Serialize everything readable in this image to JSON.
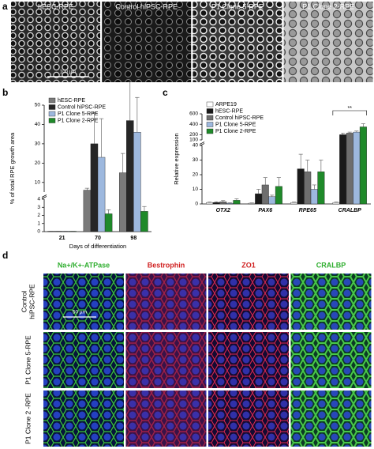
{
  "panel_a": {
    "label": "a",
    "scale_bar": "100 µm",
    "images": [
      {
        "title": "hESC-RPE"
      },
      {
        "title": "Control hiPSC-RPE"
      },
      {
        "title": "P1 Clone 5-RPE"
      },
      {
        "title": "P1 Clone 2-RPE"
      }
    ]
  },
  "chart_data": [
    {
      "type": "bar",
      "panel_label": "b",
      "ylabel": "% of total RPE growth area",
      "xlabel": "Days of differentiation",
      "categories": [
        "21",
        "70",
        "98"
      ],
      "legend": "upper left",
      "y_segments": [
        {
          "ylim": [
            0,
            4
          ],
          "yticks": [
            0,
            1,
            2,
            3,
            4
          ]
        },
        {
          "ylim": [
            5,
            50
          ],
          "yticks": [
            10,
            20,
            30,
            40,
            50
          ]
        }
      ],
      "series": [
        {
          "name": "hESC-RPE",
          "color": "#7a7a7a",
          "values": [
            0.05,
            6,
            15
          ],
          "errors": [
            0,
            1,
            10
          ]
        },
        {
          "name": "Control hiPSC-RPE",
          "color": "#262626",
          "values": [
            0.05,
            30,
            42
          ],
          "errors": [
            0,
            16,
            20
          ]
        },
        {
          "name": "P1 Clone 5-RPE",
          "color": "#9db8de",
          "values": [
            0.05,
            23,
            36
          ],
          "errors": [
            0,
            20,
            18
          ]
        },
        {
          "name": "P1 Clone 2-RPE",
          "color": "#1f8a2a",
          "values": [
            0.05,
            2.2,
            2.5
          ],
          "errors": [
            0,
            0.5,
            0.6
          ]
        }
      ]
    },
    {
      "type": "bar",
      "panel_label": "c",
      "ylabel": "Relative expression",
      "significance": "**",
      "categories": [
        "OTX2",
        "PAX6",
        "RPE65",
        "CRALBP"
      ],
      "legend": "upper left",
      "y_segments": [
        {
          "ylim": [
            0,
            40
          ],
          "yticks": [
            0,
            10,
            20,
            30,
            40
          ]
        },
        {
          "ylim": [
            100,
            600
          ],
          "yticks": [
            100,
            200,
            400,
            600
          ]
        }
      ],
      "series": [
        {
          "name": "ARPE19",
          "color": "#ffffff",
          "values": [
            1,
            0.5,
            1,
            1
          ],
          "errors": [
            0.3,
            0.2,
            0.3,
            0.3
          ]
        },
        {
          "name": "hESC-RPE",
          "color": "#1a1a1a",
          "values": [
            1,
            7,
            24,
            200
          ],
          "errors": [
            0.5,
            3,
            10,
            30
          ]
        },
        {
          "name": "Control hiPSC-RPE",
          "color": "#6e6e6e",
          "values": [
            1.5,
            13,
            22,
            230
          ],
          "errors": [
            0.8,
            5,
            8,
            20
          ]
        },
        {
          "name": "P1 Clone 5-RPE",
          "color": "#9db8de",
          "values": [
            0.5,
            5,
            10,
            250
          ],
          "errors": [
            0.3,
            1,
            3,
            20
          ]
        },
        {
          "name": "P1 Clone 2-RPE",
          "color": "#1f8a2a",
          "values": [
            2.5,
            12,
            22,
            350
          ],
          "errors": [
            1,
            6,
            8,
            60
          ]
        }
      ]
    }
  ],
  "panel_d": {
    "label": "d",
    "scale_bar": "50 µm",
    "columns": [
      {
        "title": "Na+/K+-ATPase",
        "color": "#2fae2f"
      },
      {
        "title": "Bestrophin",
        "color": "#d02020"
      },
      {
        "title": "ZO1",
        "color": "#d02020"
      },
      {
        "title": "CRALBP",
        "color": "#2fae2f"
      }
    ],
    "rows": [
      {
        "lines": [
          "Control",
          "hiPSC-RPE"
        ]
      },
      {
        "lines": [
          "P1 Clone 5-RPE"
        ]
      },
      {
        "lines": [
          "P1 Clone 2 -RPE"
        ]
      }
    ]
  }
}
